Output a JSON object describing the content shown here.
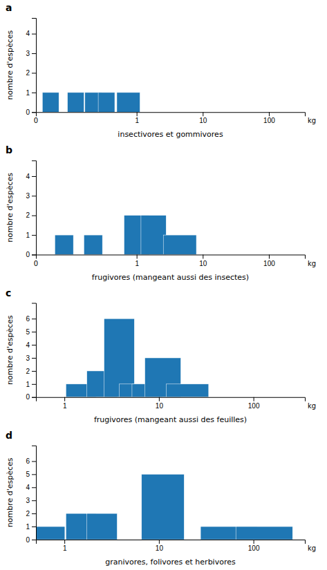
{
  "chart_data": [
    {
      "type": "bar",
      "title": "a",
      "y_label": "nombre d'espèces",
      "x_label": "insectivores et gommivores",
      "log": "x",
      "x": [
        0.05,
        0.12,
        0.22,
        0.35,
        0.75
      ],
      "values": [
        1,
        1,
        1,
        1,
        1
      ],
      "widths_log": [
        0.25,
        0.25,
        0.25,
        0.25,
        0.35
      ],
      "xlim": [
        0.03,
        350
      ],
      "xticks": [
        1,
        10,
        100
      ],
      "ylim": [
        0,
        4.8
      ],
      "yticks": [
        0,
        1,
        2,
        3,
        4
      ],
      "annotations": [
        {
          "text": "0",
          "x": 0.03
        },
        {
          "text": "kg",
          "x": 350
        }
      ]
    },
    {
      "type": "bar",
      "title": "b",
      "y_label": "nombre d'espèces",
      "x_label": "frugivores (mangeant aussi des insectes)",
      "log": "x",
      "x": [
        0.08,
        0.22,
        1.0,
        1.8,
        4.5
      ],
      "values": [
        1,
        1,
        2,
        2,
        1
      ],
      "widths_log": [
        0.28,
        0.28,
        0.38,
        0.38,
        0.5
      ],
      "xlim": [
        0.03,
        350
      ],
      "xticks": [
        1,
        10,
        100
      ],
      "ylim": [
        0,
        4.8
      ],
      "yticks": [
        0,
        1,
        2,
        3,
        4
      ],
      "annotations": [
        {
          "text": "0",
          "x": 0.03
        },
        {
          "text": "kg",
          "x": 350
        }
      ]
    },
    {
      "type": "bar",
      "title": "c",
      "y_label": "nombre d'espèces",
      "x_label": "frugivores (mangeant aussi des feuilles)",
      "log": "x",
      "x": [
        1.5,
        2.5,
        3.8,
        5.5,
        7.5,
        11.0,
        20.0
      ],
      "values": [
        1,
        2,
        6,
        1,
        1,
        3,
        1
      ],
      "widths_log": [
        0.32,
        0.32,
        0.32,
        0.32,
        0.32,
        0.38,
        0.45
      ],
      "xlim": [
        0.5,
        350
      ],
      "xticks": [
        1,
        10,
        100
      ],
      "ylim": [
        0,
        7.2
      ],
      "yticks": [
        0,
        1,
        2,
        3,
        4,
        5,
        6
      ],
      "annotations": [
        {
          "text": "kg",
          "x": 350
        }
      ]
    },
    {
      "type": "bar",
      "title": "d",
      "y_label": "nombre d'espèces",
      "x_label": "granivores, folivores et herbivores",
      "log": "x",
      "x": [
        0.7,
        1.5,
        2.5,
        11.0,
        55.0,
        130.0
      ],
      "values": [
        1,
        2,
        2,
        5,
        1,
        1
      ],
      "widths_log": [
        0.32,
        0.32,
        0.32,
        0.45,
        0.6,
        0.6
      ],
      "xlim": [
        0.5,
        350
      ],
      "xticks": [
        1,
        10,
        100
      ],
      "ylim": [
        0,
        7.2
      ],
      "yticks": [
        0,
        1,
        2,
        3,
        4,
        5,
        6
      ],
      "annotations": [
        {
          "text": "kg",
          "x": 350
        }
      ]
    }
  ]
}
